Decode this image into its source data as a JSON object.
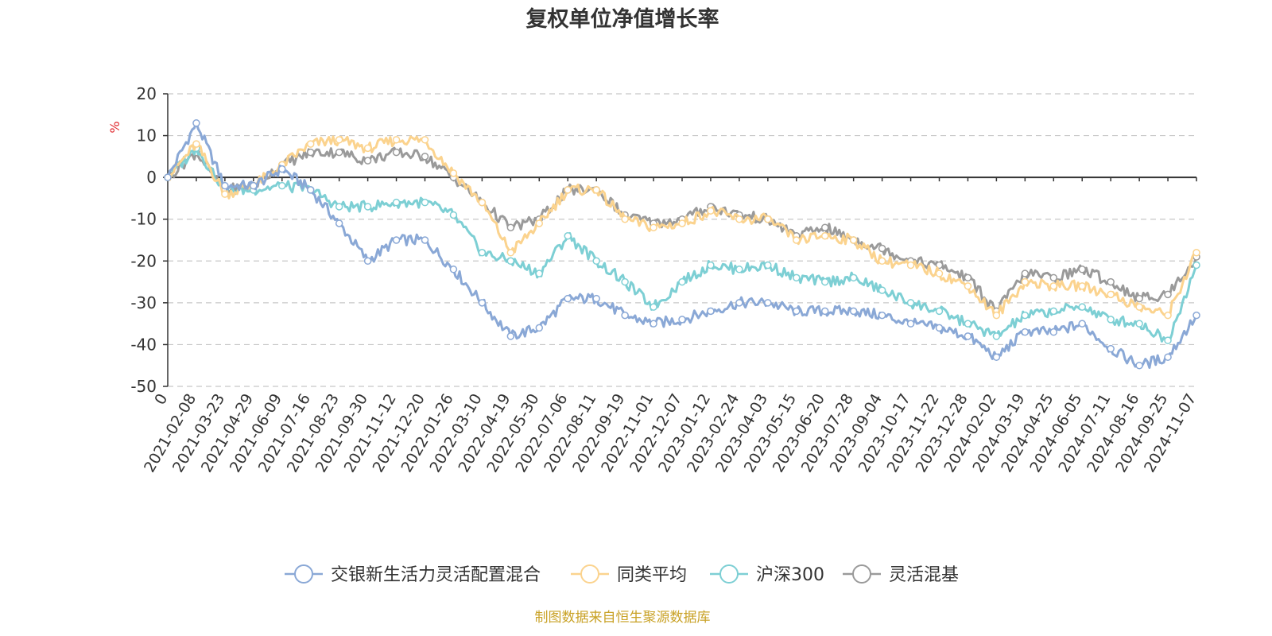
{
  "chart_data": {
    "type": "line",
    "title": "复权单位净值增长率",
    "ylabel": "%",
    "ylim": [
      -50,
      20
    ],
    "yticks": [
      20,
      10,
      0,
      -10,
      -20,
      -30,
      -40,
      -50
    ],
    "grid": true,
    "legend_position": "bottom",
    "x": [
      "0",
      "2021-02-08",
      "2021-03-23",
      "2021-04-29",
      "2021-06-09",
      "2021-07-16",
      "2021-08-23",
      "2021-09-30",
      "2021-11-12",
      "2021-12-20",
      "2022-01-26",
      "2022-03-10",
      "2022-04-19",
      "2022-05-30",
      "2022-07-06",
      "2022-08-11",
      "2022-09-19",
      "2022-11-01",
      "2022-12-07",
      "2023-01-12",
      "2023-02-24",
      "2023-04-03",
      "2023-05-15",
      "2023-06-20",
      "2023-07-28",
      "2023-09-04",
      "2023-10-17",
      "2023-11-22",
      "2023-12-28",
      "2024-02-02",
      "2024-03-19",
      "2024-04-25",
      "2024-06-05",
      "2024-07-11",
      "2024-08-16",
      "2024-09-25",
      "2024-11-07"
    ],
    "series": [
      {
        "name": "交银新生活力灵活配置混合",
        "color": "#8aa8d6",
        "values": [
          0,
          13,
          -2,
          -2,
          2,
          -3,
          -11,
          -20,
          -15,
          -15,
          -22,
          -30,
          -38,
          -36,
          -29,
          -29,
          -33,
          -35,
          -34,
          -32,
          -30,
          -30,
          -32,
          -32,
          -32,
          -33,
          -35,
          -36,
          -38,
          -43,
          -37,
          -37,
          -35,
          -41,
          -45,
          -43,
          -33
        ]
      },
      {
        "name": "同类平均",
        "color": "#fbd38e",
        "values": [
          0,
          8,
          -4,
          -2,
          3,
          8,
          9,
          7,
          9,
          9,
          1,
          -6,
          -18,
          -11,
          -3,
          -3,
          -10,
          -12,
          -11,
          -8,
          -10,
          -10,
          -15,
          -14,
          -15,
          -20,
          -21,
          -23,
          -26,
          -33,
          -25,
          -26,
          -26,
          -28,
          -31,
          -33,
          -18
        ]
      },
      {
        "name": "沪深300",
        "color": "#7dcfd4",
        "values": [
          0,
          7,
          -3,
          -3,
          -2,
          -3,
          -7,
          -7,
          -6,
          -6,
          -9,
          -18,
          -20,
          -23,
          -14,
          -20,
          -25,
          -31,
          -25,
          -21,
          -22,
          -21,
          -24,
          -25,
          -24,
          -27,
          -30,
          -32,
          -35,
          -38,
          -33,
          -32,
          -31,
          -34,
          -35,
          -39,
          -21
        ]
      },
      {
        "name": "灵活混基",
        "color": "#9a9a9a",
        "values": [
          0,
          6,
          -3,
          -2,
          3,
          6,
          6,
          4,
          6,
          5,
          0,
          -6,
          -12,
          -10,
          -3,
          -3,
          -9,
          -11,
          -10,
          -7,
          -9,
          -10,
          -14,
          -12,
          -15,
          -17,
          -20,
          -21,
          -24,
          -32,
          -23,
          -24,
          -22,
          -25,
          -29,
          -28,
          -19
        ]
      }
    ]
  },
  "source": "制图数据来自恒生聚源数据库"
}
